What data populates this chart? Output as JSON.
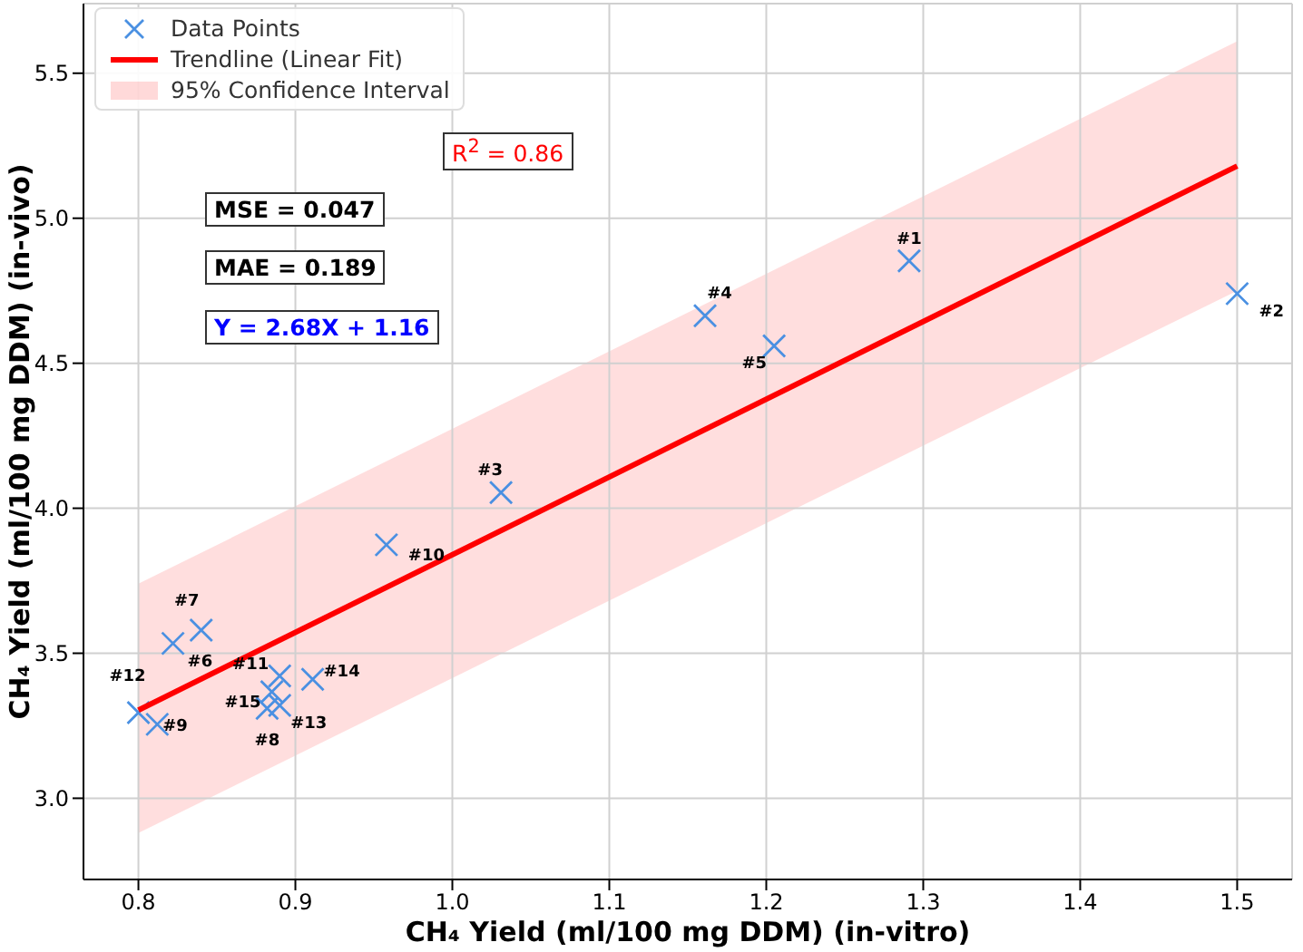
{
  "chart_data": {
    "type": "scatter",
    "xlabel": "CH₄ Yield (ml/100 mg DDM) (in-vitro)",
    "ylabel": "CH₄ Yield (ml/100 mg DDM) (in-vivo)",
    "x": [
      1.291,
      1.5,
      1.031,
      1.161,
      1.205,
      0.822,
      0.84,
      0.882,
      0.812,
      0.958,
      0.89,
      0.8,
      0.89,
      0.911,
      0.885
    ],
    "series": [
      {
        "name": "Data Points",
        "marker": "cross",
        "color": "#4a90e2",
        "values": [
          4.853,
          4.74,
          4.054,
          4.664,
          4.56,
          3.534,
          3.58,
          3.31,
          3.255,
          3.874,
          3.422,
          3.295,
          3.32,
          3.41,
          3.367
        ]
      },
      {
        "name": "Trendline (Linear Fit)",
        "type": "line",
        "marker": "none",
        "color": "#ff0000",
        "x": [
          0.8,
          1.5
        ],
        "values": [
          3.304,
          5.18
        ],
        "lower": [
          2.88,
          4.75
        ],
        "upper": [
          3.74,
          5.61
        ]
      }
    ],
    "xlim": [
      0.765,
      1.535
    ],
    "ylim": [
      2.72,
      5.74
    ],
    "xticks": [
      0.8,
      0.9,
      {
        "value": 1.0,
        "label": "1.0"
      },
      1.1,
      1.2,
      1.3,
      1.4,
      1.5
    ],
    "yticks": [
      {
        "value": 3.0,
        "label": "3.0"
      },
      3.5,
      {
        "value": 4.0,
        "label": "4.0"
      },
      4.5,
      {
        "value": 5.0,
        "label": "5.0"
      },
      5.5
    ],
    "grid": true,
    "legend": "top left",
    "annotations": [
      {
        "text": "#1",
        "x": 1.291,
        "y": 4.853
      },
      {
        "text": "#2",
        "x": 1.5,
        "y": 4.74
      },
      {
        "text": "#3",
        "x": 1.031,
        "y": 4.054
      },
      {
        "text": "#4",
        "x": 1.161,
        "y": 4.664
      },
      {
        "text": "#5",
        "x": 1.205,
        "y": 4.56
      },
      {
        "text": "#6",
        "x": 0.822,
        "y": 3.534
      },
      {
        "text": "#7",
        "x": 0.84,
        "y": 3.58
      },
      {
        "text": "#8",
        "x": 0.882,
        "y": 3.31
      },
      {
        "text": "#9",
        "x": 0.812,
        "y": 3.255
      },
      {
        "text": "#10",
        "x": 0.958,
        "y": 3.874
      },
      {
        "text": "#11",
        "x": 0.89,
        "y": 3.422
      },
      {
        "text": "#12",
        "x": 0.8,
        "y": 3.295
      },
      {
        "text": "#13",
        "x": 0.89,
        "y": 3.32
      },
      {
        "text": "#14",
        "x": 0.911,
        "y": 3.41
      },
      {
        "text": "#15",
        "x": 0.885,
        "y": 3.367
      },
      "95% Confidence Interval",
      "R$^{2}$ = 0.86",
      "MSE = 0.047",
      "MAE = 0.189",
      "Y = 2.68X + 1.16"
    ]
  }
}
